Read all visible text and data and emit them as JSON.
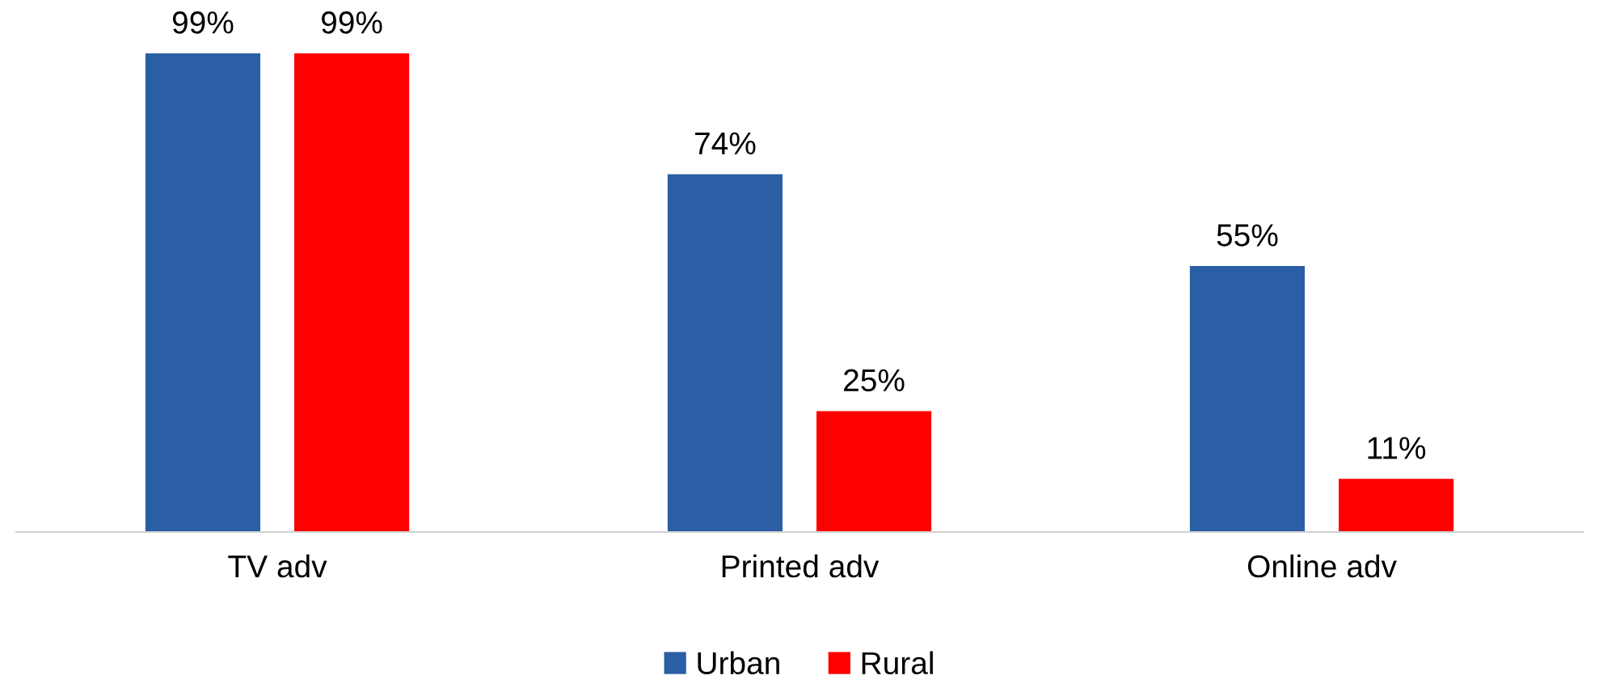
{
  "chart_data": {
    "type": "bar",
    "categories": [
      "TV adv",
      "Printed adv",
      "Online adv"
    ],
    "series": [
      {
        "name": "Urban",
        "color": "#2a5ea5",
        "values": [
          99,
          74,
          55
        ],
        "value_labels": [
          "99%",
          "74%",
          "55%"
        ]
      },
      {
        "name": "Rural",
        "color": "#ff0000",
        "values": [
          99,
          25,
          11
        ],
        "value_labels": [
          "99%",
          "25%",
          "11%"
        ]
      }
    ],
    "legend": "bottom",
    "tick_labels": "x"
  }
}
